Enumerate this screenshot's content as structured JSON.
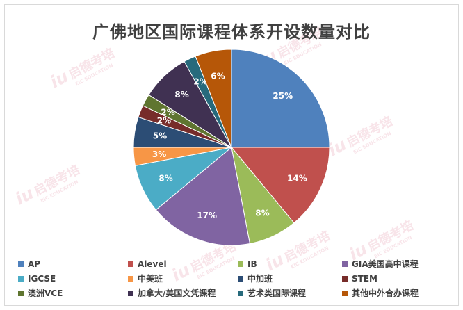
{
  "chart_data": {
    "type": "pie",
    "title": "广佛地区国际课程体系开设数量对比",
    "slices": [
      {
        "name": "AP",
        "value": 25,
        "label": "25%",
        "color": "#4f81bd"
      },
      {
        "name": "Alevel",
        "value": 14,
        "label": "14%",
        "color": "#c0504d"
      },
      {
        "name": "IB",
        "value": 8,
        "label": "8%",
        "color": "#9bbb59"
      },
      {
        "name": "GIA美国高中课程",
        "value": 17,
        "label": "17%",
        "color": "#8064a2"
      },
      {
        "name": "IGCSE",
        "value": 8,
        "label": "8%",
        "color": "#4bacc6"
      },
      {
        "name": "中美班",
        "value": 3,
        "label": "3%",
        "color": "#f79646"
      },
      {
        "name": "中加班",
        "value": 5,
        "label": "5%",
        "color": "#2c4d75"
      },
      {
        "name": "STEM",
        "value": 2,
        "label": "2%",
        "color": "#772c2a"
      },
      {
        "name": "澳洲VCE",
        "value": 2,
        "label": "2%",
        "color": "#5f7530"
      },
      {
        "name": "加拿大/美国文凭课程",
        "value": 8,
        "label": "8%",
        "color": "#403152"
      },
      {
        "name": "艺术类国际课程",
        "value": 2,
        "label": "2%",
        "color": "#276a7c"
      },
      {
        "name": "其他中外合办课程",
        "value": 6,
        "label": "6%",
        "color": "#b65708"
      }
    ],
    "legend_position": "bottom"
  },
  "watermark": {
    "text": "启德考培",
    "sub": "EIC EDUCATION",
    "mark": "iu"
  }
}
